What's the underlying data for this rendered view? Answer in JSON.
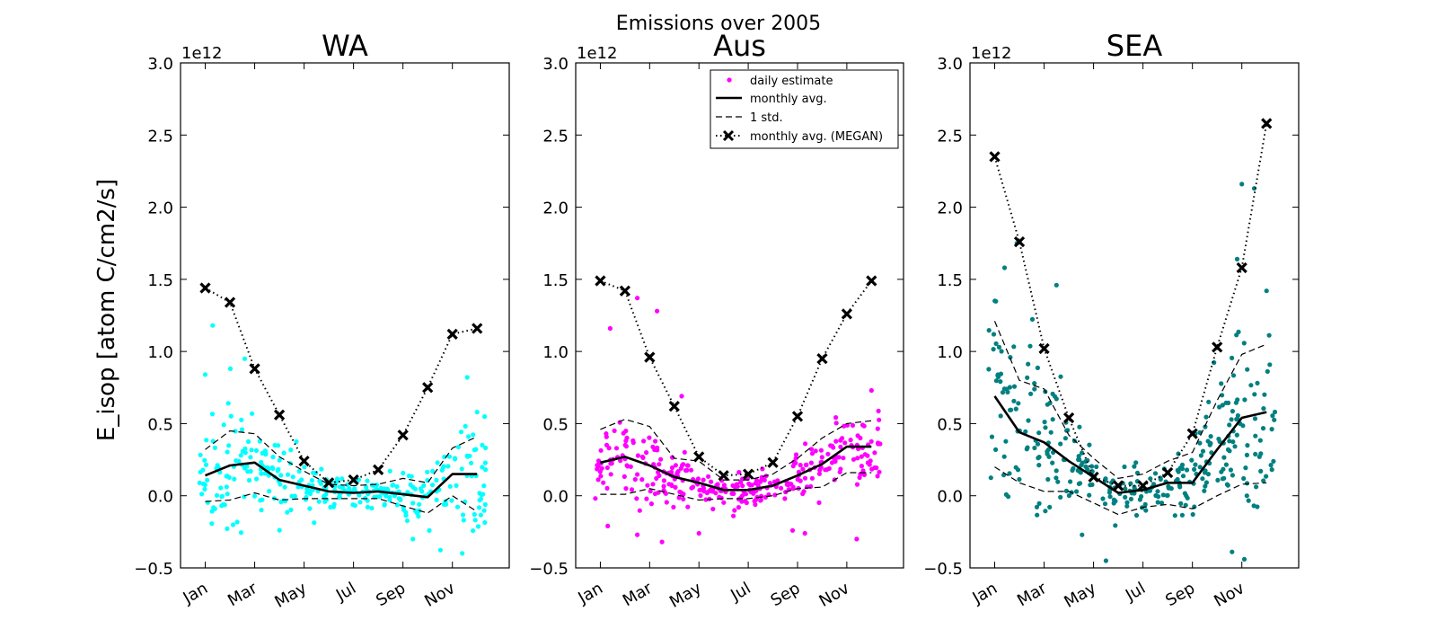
{
  "figure": {
    "suptitle": "Emissions over 2005",
    "ylabel": "E_isop [atom C/cm2/s]",
    "y_offset_label": "1e12"
  },
  "colors": {
    "WA": "#00ffff",
    "Aus": "#ff00ff",
    "SEA": "#008080",
    "monthly": "#000000"
  },
  "legend": {
    "placement": "upper-right of middle panel",
    "entries": [
      "daily estimate",
      "monthly avg.",
      "1 std.",
      "monthly avg. (MEGAN)"
    ]
  },
  "chart_data": [
    {
      "type": "scatter",
      "title": "WA",
      "xlabel": "",
      "ylabel": "E_isop [atom C/cm2/s]",
      "y_scale": 1000000000000.0,
      "ylim": [
        -0.5,
        3.0
      ],
      "yticks": [
        "−0.5",
        "0.0",
        "0.5",
        "1.0",
        "1.5",
        "2.0",
        "2.5",
        "3.0"
      ],
      "xticks": [
        "Jan",
        "Mar",
        "May",
        "Jul",
        "Sep",
        "Nov"
      ],
      "months": [
        1,
        2,
        3,
        4,
        5,
        6,
        7,
        8,
        9,
        10,
        11,
        12
      ],
      "series": [
        {
          "name": "monthly avg.",
          "values": [
            0.14,
            0.21,
            0.23,
            0.11,
            0.07,
            0.03,
            0.02,
            0.03,
            0.01,
            -0.01,
            0.15,
            0.15
          ]
        },
        {
          "name": "1 std.",
          "upper": [
            0.32,
            0.45,
            0.43,
            0.27,
            0.17,
            0.08,
            0.07,
            0.08,
            0.12,
            0.09,
            0.33,
            0.41
          ],
          "lower": [
            -0.04,
            -0.03,
            0.02,
            -0.03,
            -0.02,
            -0.02,
            -0.02,
            -0.02,
            -0.07,
            -0.12,
            0.0,
            -0.11
          ]
        },
        {
          "name": "monthly avg. (MEGAN)",
          "values": [
            1.44,
            1.34,
            0.88,
            0.56,
            0.24,
            0.09,
            0.11,
            0.18,
            0.42,
            0.75,
            1.12,
            1.16
          ]
        },
        {
          "name": "daily estimate",
          "mean": [
            0.14,
            0.21,
            0.23,
            0.11,
            0.07,
            0.03,
            0.02,
            0.03,
            0.01,
            -0.01,
            0.15,
            0.15
          ],
          "spread": [
            0.18,
            0.24,
            0.2,
            0.15,
            0.1,
            0.06,
            0.06,
            0.07,
            0.1,
            0.12,
            0.18,
            0.25
          ],
          "outliers": [
            [
              1.3,
              1.18
            ],
            [
              2.6,
              0.95
            ],
            [
              1.0,
              0.84
            ],
            [
              11.6,
              0.82
            ],
            [
              9.4,
              -0.3
            ],
            [
              11.4,
              -0.4
            ],
            [
              12.0,
              0.58
            ]
          ]
        }
      ]
    },
    {
      "type": "scatter",
      "title": "Aus",
      "xlabel": "",
      "ylabel": "",
      "y_scale": 1000000000000.0,
      "ylim": [
        -0.5,
        3.0
      ],
      "yticks": [
        "−0.5",
        "0.0",
        "0.5",
        "1.0",
        "1.5",
        "2.0",
        "2.5",
        "3.0"
      ],
      "xticks": [
        "Jan",
        "Mar",
        "May",
        "Jul",
        "Sep",
        "Nov"
      ],
      "months": [
        1,
        2,
        3,
        4,
        5,
        6,
        7,
        8,
        9,
        10,
        11,
        12
      ],
      "series": [
        {
          "name": "monthly avg.",
          "values": [
            0.23,
            0.27,
            0.21,
            0.13,
            0.09,
            0.04,
            0.04,
            0.07,
            0.14,
            0.22,
            0.34,
            0.34
          ]
        },
        {
          "name": "1 std.",
          "upper": [
            0.46,
            0.53,
            0.48,
            0.26,
            0.24,
            0.11,
            0.11,
            0.15,
            0.26,
            0.4,
            0.5,
            0.52
          ],
          "lower": [
            0.01,
            0.01,
            0.05,
            0.01,
            -0.03,
            -0.02,
            -0.02,
            0.0,
            0.05,
            0.06,
            0.16,
            0.16
          ]
        },
        {
          "name": "monthly avg. (MEGAN)",
          "values": [
            1.49,
            1.42,
            0.96,
            0.62,
            0.27,
            0.14,
            0.15,
            0.23,
            0.55,
            0.95,
            1.26,
            1.49
          ]
        },
        {
          "name": "daily estimate",
          "mean": [
            0.23,
            0.27,
            0.21,
            0.13,
            0.09,
            0.04,
            0.04,
            0.07,
            0.14,
            0.22,
            0.34,
            0.34
          ],
          "spread": [
            0.15,
            0.16,
            0.14,
            0.11,
            0.08,
            0.06,
            0.06,
            0.07,
            0.1,
            0.14,
            0.16,
            0.16
          ],
          "outliers": [
            [
              1.4,
              1.16
            ],
            [
              2.5,
              1.37
            ],
            [
              3.3,
              1.28
            ],
            [
              4.3,
              0.69
            ],
            [
              1.3,
              -0.21
            ],
            [
              2.5,
              -0.27
            ],
            [
              3.5,
              -0.32
            ],
            [
              5.0,
              -0.26
            ],
            [
              6.4,
              -0.14
            ],
            [
              8.8,
              -0.24
            ],
            [
              9.3,
              -0.26
            ],
            [
              11.4,
              -0.3
            ],
            [
              12.0,
              0.73
            ]
          ]
        }
      ]
    },
    {
      "type": "scatter",
      "title": "SEA",
      "xlabel": "",
      "ylabel": "",
      "y_scale": 1000000000000.0,
      "ylim": [
        -0.5,
        3.0
      ],
      "yticks": [
        "−0.5",
        "0.0",
        "0.5",
        "1.0",
        "1.5",
        "2.0",
        "2.5",
        "3.0"
      ],
      "xticks": [
        "Jan",
        "Mar",
        "May",
        "Jul",
        "Sep",
        "Nov"
      ],
      "months": [
        1,
        2,
        3,
        4,
        5,
        6,
        7,
        8,
        9,
        10,
        11,
        12
      ],
      "series": [
        {
          "name": "monthly avg.",
          "values": [
            0.69,
            0.44,
            0.37,
            0.24,
            0.13,
            0.02,
            0.04,
            0.09,
            0.09,
            0.32,
            0.54,
            0.58
          ]
        },
        {
          "name": "1 std.",
          "upper": [
            1.21,
            0.8,
            0.74,
            0.42,
            0.26,
            0.12,
            0.15,
            0.24,
            0.3,
            0.66,
            0.98,
            1.05
          ],
          "lower": [
            0.2,
            0.09,
            0.03,
            0.03,
            -0.05,
            -0.13,
            -0.08,
            -0.06,
            -0.09,
            0.0,
            0.08,
            0.09
          ]
        },
        {
          "name": "monthly avg. (MEGAN)",
          "values": [
            2.35,
            1.76,
            1.02,
            0.54,
            0.13,
            0.07,
            0.07,
            0.16,
            0.43,
            1.03,
            1.58,
            2.58
          ]
        },
        {
          "name": "daily estimate",
          "mean": [
            0.69,
            0.44,
            0.37,
            0.24,
            0.13,
            0.02,
            0.04,
            0.09,
            0.09,
            0.32,
            0.54,
            0.58
          ],
          "spread": [
            0.5,
            0.33,
            0.3,
            0.18,
            0.12,
            0.1,
            0.1,
            0.11,
            0.13,
            0.3,
            0.41,
            0.45
          ],
          "outliers": [
            [
              1.4,
              1.58
            ],
            [
              1.9,
              1.75
            ],
            [
              3.5,
              1.46
            ],
            [
              11.0,
              2.16
            ],
            [
              11.5,
              2.13
            ],
            [
              12.0,
              1.42
            ],
            [
              5.5,
              -0.45
            ],
            [
              11.1,
              -0.44
            ]
          ]
        }
      ]
    }
  ]
}
